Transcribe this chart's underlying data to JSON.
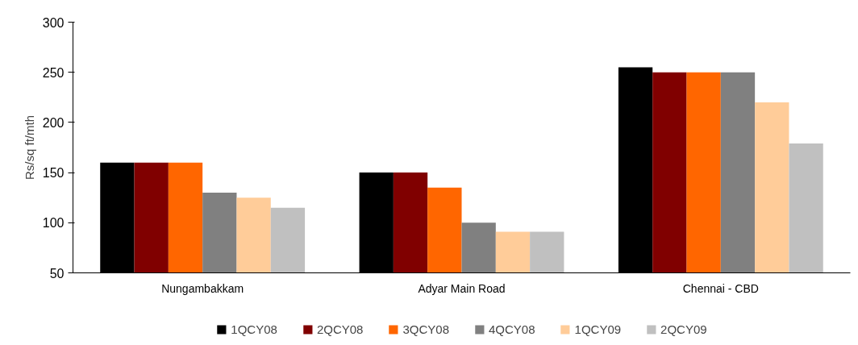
{
  "chart_data": {
    "type": "bar",
    "ylabel": "Rs/sq ft/mth",
    "categories": [
      "Nungambakkam",
      "Adyar Main Road",
      "Chennai - CBD"
    ],
    "series": [
      {
        "name": "1QCY08",
        "color": "#000000",
        "values": [
          160,
          150,
          255
        ]
      },
      {
        "name": "2QCY08",
        "color": "#800000",
        "values": [
          160,
          150,
          250
        ]
      },
      {
        "name": "3QCY08",
        "color": "#ff6600",
        "values": [
          160,
          135,
          250
        ]
      },
      {
        "name": "4QCY08",
        "color": "#808080",
        "values": [
          130,
          100,
          250
        ]
      },
      {
        "name": "1QCY09",
        "color": "#ffcc99",
        "values": [
          125,
          91,
          220
        ]
      },
      {
        "name": "2QCY09",
        "color": "#c0c0c0",
        "values": [
          115,
          91,
          179
        ]
      }
    ],
    "ylim": [
      50,
      300
    ],
    "yticks": [
      50,
      100,
      150,
      200,
      250,
      300
    ],
    "grid": false,
    "legend": "bottom"
  }
}
